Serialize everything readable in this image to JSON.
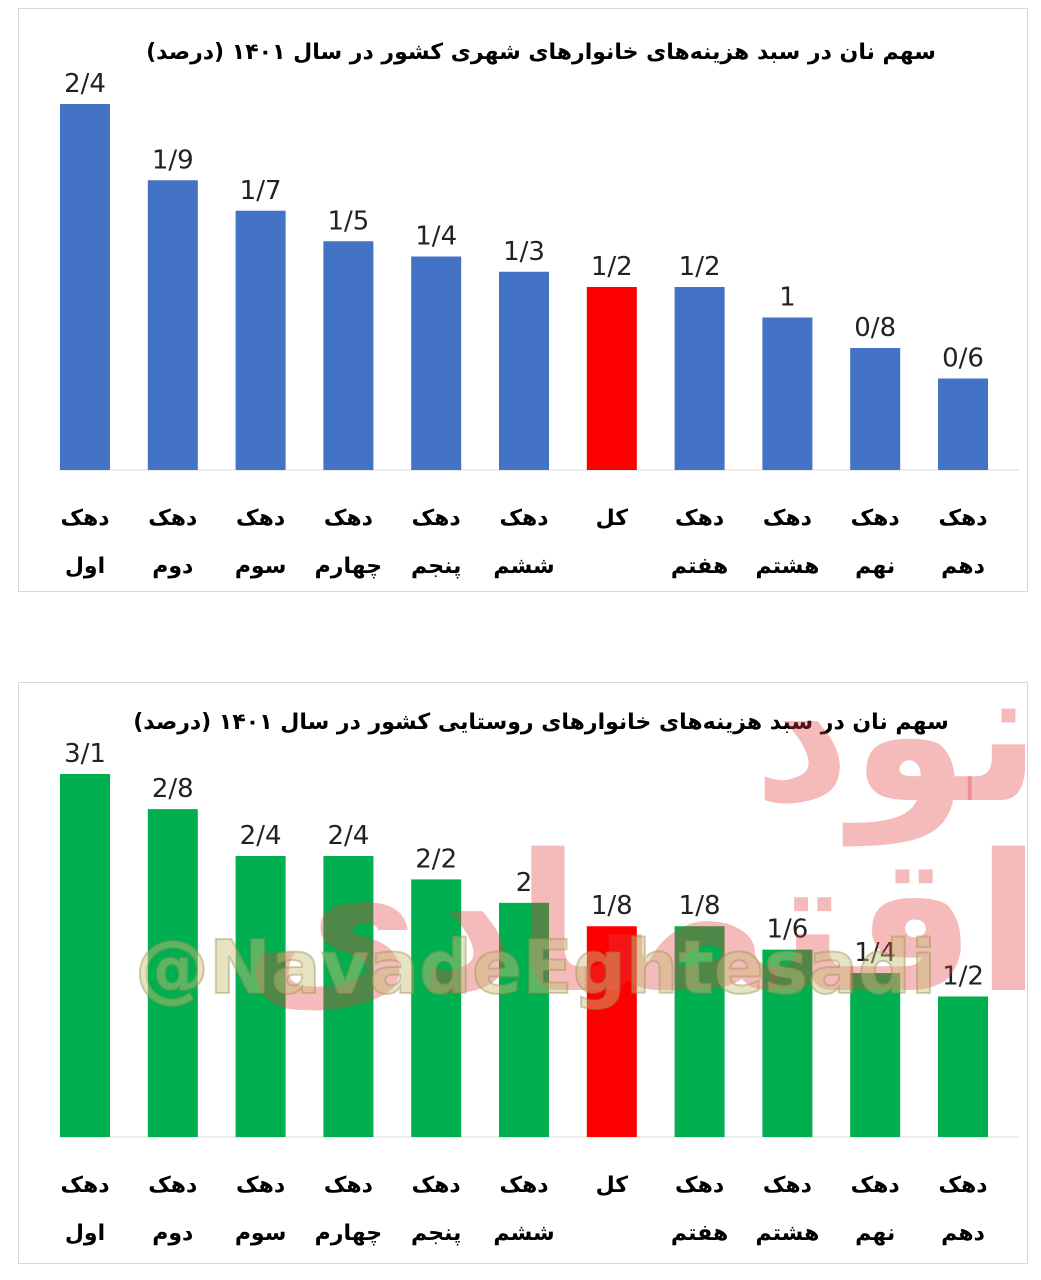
{
  "watermark": {
    "logo_text": "نود اقتصادی",
    "handle": "@NavadeEghtesadi"
  },
  "chart_data": [
    {
      "type": "bar",
      "title": "سهم نان در سبد هزینه‌های خانوارهای شهری کشور در سال ۱۴۰۱ (درصد)",
      "categories": [
        "دهک اول",
        "دهک دوم",
        "دهک سوم",
        "دهک چهارم",
        "دهک پنجم",
        "دهک ششم",
        "کل",
        "دهک هفتم",
        "دهک هشتم",
        "دهک نهم",
        "دهک دهم"
      ],
      "values": [
        2.4,
        1.9,
        1.7,
        1.5,
        1.4,
        1.3,
        1.2,
        1.2,
        1.0,
        0.8,
        0.6
      ],
      "data_labels": [
        "2/4",
        "1/9",
        "1/7",
        "1/5",
        "1/4",
        "1/3",
        "1/2",
        "1/2",
        "1",
        "0/8",
        "0/6"
      ],
      "colors": {
        "default": "#4472C4",
        "highlight": "#FF0000"
      },
      "highlight_category": "کل",
      "ylim": [
        0,
        2.4
      ],
      "grid": false,
      "legend": "none"
    },
    {
      "type": "bar",
      "title": "سهم نان در سبد هزینه‌های خانوارهای روستایی کشور در سال ۱۴۰۱ (درصد)",
      "categories": [
        "دهک اول",
        "دهک دوم",
        "دهک سوم",
        "دهک چهارم",
        "دهک پنجم",
        "دهک ششم",
        "کل",
        "دهک هفتم",
        "دهک هشتم",
        "دهک نهم",
        "دهک دهم"
      ],
      "values": [
        3.1,
        2.8,
        2.4,
        2.4,
        2.2,
        2.0,
        1.8,
        1.8,
        1.6,
        1.4,
        1.2
      ],
      "data_labels": [
        "3/1",
        "2/8",
        "2/4",
        "2/4",
        "2/2",
        "2",
        "1/8",
        "1/8",
        "1/6",
        "1/4",
        "1/2"
      ],
      "colors": {
        "default": "#00B050",
        "highlight": "#FF0000"
      },
      "highlight_category": "کل",
      "ylim": [
        0,
        3.1
      ],
      "grid": false,
      "legend": "none"
    }
  ]
}
